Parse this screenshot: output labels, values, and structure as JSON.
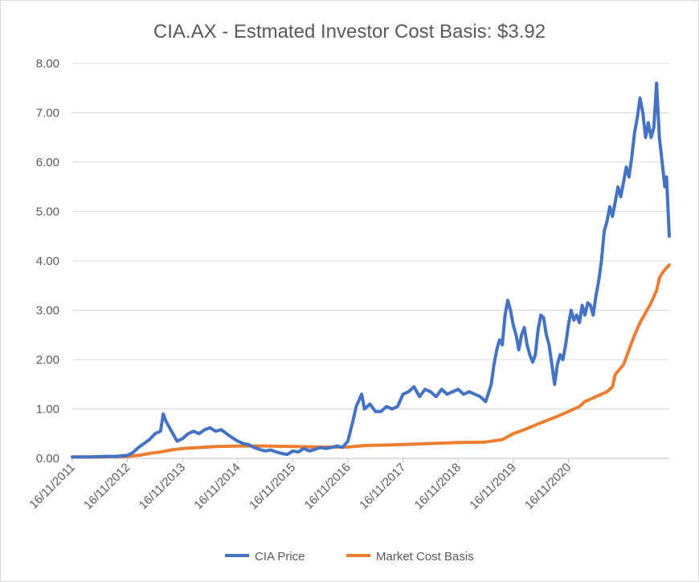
{
  "chart_data": {
    "type": "line",
    "title": "CIA.AX - Estmated Investor Cost Basis:  $3.92",
    "xlabel": "",
    "ylabel": "",
    "ylim": [
      0,
      8
    ],
    "yticks": [
      "0.00",
      "1.00",
      "2.00",
      "3.00",
      "4.00",
      "5.00",
      "6.00",
      "7.00",
      "8.00"
    ],
    "xticks": [
      "16/11/2011",
      "16/11/2012",
      "16/11/2013",
      "16/11/2014",
      "16/11/2015",
      "16/11/2016",
      "16/11/2017",
      "16/11/2018",
      "16/11/2019",
      "16/11/2020"
    ],
    "grid": true,
    "legend_position": "bottom",
    "series": [
      {
        "name": "CIA Price",
        "color": "#4472c4",
        "points": [
          [
            0.0,
            0.03
          ],
          [
            0.3,
            0.03
          ],
          [
            0.6,
            0.04
          ],
          [
            0.8,
            0.04
          ],
          [
            1.0,
            0.06
          ],
          [
            1.1,
            0.12
          ],
          [
            1.2,
            0.22
          ],
          [
            1.3,
            0.3
          ],
          [
            1.4,
            0.38
          ],
          [
            1.5,
            0.5
          ],
          [
            1.6,
            0.55
          ],
          [
            1.65,
            0.9
          ],
          [
            1.7,
            0.75
          ],
          [
            1.8,
            0.55
          ],
          [
            1.9,
            0.35
          ],
          [
            2.0,
            0.4
          ],
          [
            2.1,
            0.5
          ],
          [
            2.2,
            0.55
          ],
          [
            2.3,
            0.5
          ],
          [
            2.4,
            0.58
          ],
          [
            2.5,
            0.62
          ],
          [
            2.6,
            0.55
          ],
          [
            2.7,
            0.58
          ],
          [
            2.8,
            0.5
          ],
          [
            2.9,
            0.42
          ],
          [
            3.0,
            0.35
          ],
          [
            3.1,
            0.3
          ],
          [
            3.2,
            0.28
          ],
          [
            3.3,
            0.22
          ],
          [
            3.4,
            0.18
          ],
          [
            3.5,
            0.15
          ],
          [
            3.6,
            0.17
          ],
          [
            3.7,
            0.13
          ],
          [
            3.8,
            0.1
          ],
          [
            3.9,
            0.08
          ],
          [
            4.0,
            0.15
          ],
          [
            4.1,
            0.13
          ],
          [
            4.2,
            0.2
          ],
          [
            4.3,
            0.15
          ],
          [
            4.4,
            0.18
          ],
          [
            4.5,
            0.22
          ],
          [
            4.6,
            0.2
          ],
          [
            4.7,
            0.22
          ],
          [
            4.8,
            0.25
          ],
          [
            4.9,
            0.22
          ],
          [
            5.0,
            0.35
          ],
          [
            5.1,
            0.8
          ],
          [
            5.15,
            1.05
          ],
          [
            5.25,
            1.3
          ],
          [
            5.3,
            1.0
          ],
          [
            5.4,
            1.1
          ],
          [
            5.5,
            0.95
          ],
          [
            5.6,
            0.95
          ],
          [
            5.7,
            1.05
          ],
          [
            5.8,
            1.0
          ],
          [
            5.9,
            1.05
          ],
          [
            6.0,
            1.3
          ],
          [
            6.1,
            1.35
          ],
          [
            6.2,
            1.45
          ],
          [
            6.3,
            1.25
          ],
          [
            6.4,
            1.4
          ],
          [
            6.5,
            1.35
          ],
          [
            6.6,
            1.25
          ],
          [
            6.7,
            1.4
          ],
          [
            6.8,
            1.3
          ],
          [
            6.9,
            1.35
          ],
          [
            7.0,
            1.4
          ],
          [
            7.1,
            1.3
          ],
          [
            7.2,
            1.35
          ],
          [
            7.3,
            1.3
          ],
          [
            7.4,
            1.25
          ],
          [
            7.5,
            1.15
          ],
          [
            7.6,
            1.5
          ],
          [
            7.65,
            1.9
          ],
          [
            7.7,
            2.2
          ],
          [
            7.75,
            2.4
          ],
          [
            7.8,
            2.3
          ],
          [
            7.85,
            2.9
          ],
          [
            7.9,
            3.2
          ],
          [
            7.95,
            3.0
          ],
          [
            8.0,
            2.7
          ],
          [
            8.05,
            2.5
          ],
          [
            8.1,
            2.2
          ],
          [
            8.15,
            2.5
          ],
          [
            8.2,
            2.65
          ],
          [
            8.25,
            2.3
          ],
          [
            8.3,
            2.1
          ],
          [
            8.35,
            1.95
          ],
          [
            8.4,
            2.1
          ],
          [
            8.45,
            2.6
          ],
          [
            8.5,
            2.9
          ],
          [
            8.55,
            2.85
          ],
          [
            8.6,
            2.5
          ],
          [
            8.65,
            2.3
          ],
          [
            8.7,
            1.9
          ],
          [
            8.75,
            1.5
          ],
          [
            8.8,
            1.9
          ],
          [
            8.85,
            2.1
          ],
          [
            8.9,
            2.0
          ],
          [
            8.95,
            2.3
          ],
          [
            9.0,
            2.7
          ],
          [
            9.05,
            3.0
          ],
          [
            9.1,
            2.8
          ],
          [
            9.15,
            2.9
          ],
          [
            9.2,
            2.75
          ],
          [
            9.25,
            3.1
          ],
          [
            9.3,
            2.9
          ],
          [
            9.35,
            3.15
          ],
          [
            9.4,
            3.1
          ],
          [
            9.45,
            2.9
          ],
          [
            9.5,
            3.3
          ],
          [
            9.55,
            3.6
          ],
          [
            9.6,
            4.0
          ],
          [
            9.65,
            4.6
          ],
          [
            9.7,
            4.8
          ],
          [
            9.75,
            5.1
          ],
          [
            9.8,
            4.9
          ],
          [
            9.85,
            5.2
          ],
          [
            9.9,
            5.5
          ],
          [
            9.95,
            5.3
          ],
          [
            10.0,
            5.6
          ],
          [
            10.05,
            5.9
          ],
          [
            10.1,
            5.7
          ],
          [
            10.15,
            6.1
          ],
          [
            10.2,
            6.6
          ],
          [
            10.25,
            6.9
          ],
          [
            10.3,
            7.3
          ],
          [
            10.35,
            7.0
          ],
          [
            10.4,
            6.5
          ],
          [
            10.45,
            6.8
          ],
          [
            10.5,
            6.5
          ],
          [
            10.55,
            6.7
          ],
          [
            10.6,
            7.6
          ],
          [
            10.65,
            6.5
          ],
          [
            10.7,
            6.0
          ],
          [
            10.75,
            5.5
          ],
          [
            10.78,
            5.7
          ],
          [
            10.83,
            4.5
          ]
        ]
      },
      {
        "name": "Market Cost Basis",
        "color": "#ed7d31",
        "points": [
          [
            0.0,
            0.03
          ],
          [
            0.5,
            0.03
          ],
          [
            1.0,
            0.04
          ],
          [
            1.2,
            0.06
          ],
          [
            1.4,
            0.1
          ],
          [
            1.6,
            0.13
          ],
          [
            1.8,
            0.17
          ],
          [
            2.0,
            0.2
          ],
          [
            2.3,
            0.22
          ],
          [
            2.6,
            0.24
          ],
          [
            3.0,
            0.25
          ],
          [
            3.5,
            0.25
          ],
          [
            4.0,
            0.24
          ],
          [
            4.5,
            0.23
          ],
          [
            5.0,
            0.23
          ],
          [
            5.3,
            0.26
          ],
          [
            5.7,
            0.27
          ],
          [
            6.0,
            0.28
          ],
          [
            6.5,
            0.3
          ],
          [
            7.0,
            0.32
          ],
          [
            7.5,
            0.33
          ],
          [
            7.8,
            0.38
          ],
          [
            8.0,
            0.5
          ],
          [
            8.2,
            0.58
          ],
          [
            8.5,
            0.72
          ],
          [
            8.8,
            0.85
          ],
          [
            9.0,
            0.95
          ],
          [
            9.2,
            1.05
          ],
          [
            9.3,
            1.15
          ],
          [
            9.5,
            1.25
          ],
          [
            9.7,
            1.35
          ],
          [
            9.8,
            1.45
          ],
          [
            9.85,
            1.7
          ],
          [
            10.0,
            1.9
          ],
          [
            10.1,
            2.2
          ],
          [
            10.2,
            2.5
          ],
          [
            10.3,
            2.75
          ],
          [
            10.4,
            2.95
          ],
          [
            10.5,
            3.15
          ],
          [
            10.6,
            3.4
          ],
          [
            10.65,
            3.65
          ],
          [
            10.7,
            3.75
          ],
          [
            10.75,
            3.82
          ],
          [
            10.83,
            3.92
          ]
        ]
      }
    ]
  }
}
